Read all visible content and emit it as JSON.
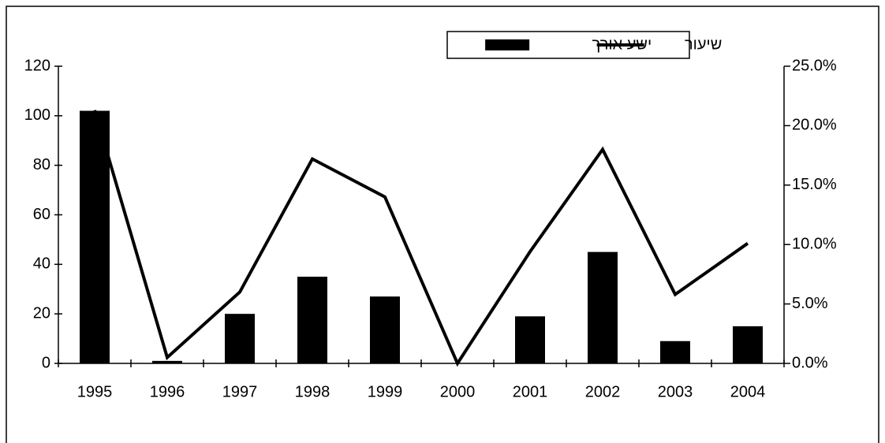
{
  "chart_data": {
    "type": "bar",
    "categories": [
      "1995",
      "1996",
      "1997",
      "1998",
      "1999",
      "2000",
      "2001",
      "2002",
      "2003",
      "2004"
    ],
    "series": [
      {
        "name": "ישע אורך",
        "type": "bar",
        "color": "#000000",
        "values": [
          102,
          1,
          20,
          35,
          27,
          0,
          19,
          45,
          9,
          15
        ]
      },
      {
        "name": "שיעור",
        "type": "line",
        "axis": "y2",
        "color": "#000000",
        "values": [
          21.3,
          0.5,
          6.0,
          17.2,
          14.0,
          0,
          9.4,
          18.0,
          5.8,
          10.1
        ]
      }
    ],
    "ylim": [
      0,
      120
    ],
    "yticks": [
      0,
      20,
      40,
      60,
      80,
      100,
      120
    ],
    "y2lim": [
      0,
      25
    ],
    "y2ticks": [
      {
        "value": 0,
        "label": "0.0%"
      },
      {
        "value": 5,
        "label": "5.0%"
      },
      {
        "value": 10,
        "label": "10.0%"
      },
      {
        "value": 15,
        "label": "15.0%"
      },
      {
        "value": 20,
        "label": "20.0%"
      },
      {
        "value": 25,
        "label": "25.0%"
      }
    ],
    "legend": "top"
  }
}
